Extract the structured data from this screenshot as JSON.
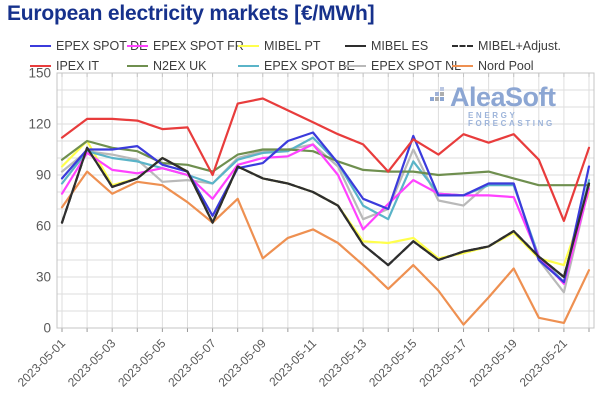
{
  "title": "European electricity markets [€/MWh]",
  "watermark": {
    "brand": "AleaSoft",
    "tagline": "ENERGY FORECASTING"
  },
  "colors": {
    "title": "#16318c",
    "grid": "#dedede",
    "axis_border": "#c4c4c4",
    "tick_label": "#595959",
    "watermark_blue": "#8ca6d3"
  },
  "legend": {
    "rows": [
      [
        {
          "label": "EPEX SPOT DE",
          "color": "#3b3bdc",
          "dashed": false
        },
        {
          "label": "EPEX SPOT FR",
          "color": "#ff42ff",
          "dashed": false
        },
        {
          "label": "MIBEL PT",
          "color": "#ffff4d",
          "dashed": false
        },
        {
          "label": "MIBEL ES",
          "color": "#2e2e2e",
          "dashed": false
        },
        {
          "label": "MIBEL+Adjust.",
          "color": "#2e2e2e",
          "dashed": true
        }
      ],
      [
        {
          "label": "IPEX IT",
          "color": "#e83c3c",
          "dashed": false
        },
        {
          "label": "N2EX UK",
          "color": "#6f8f4f",
          "dashed": false
        },
        {
          "label": "EPEX SPOT BE",
          "color": "#5ab4c8",
          "dashed": false
        },
        {
          "label": "EPEX SPOT NL",
          "color": "#b9b9b9",
          "dashed": false
        },
        {
          "label": "Nord Pool",
          "color": "#ee9051",
          "dashed": false
        }
      ]
    ]
  },
  "chart_data": {
    "type": "line",
    "title": "European electricity markets [€/MWh]",
    "xlabel": "",
    "ylabel": "",
    "ylim": [
      0,
      150
    ],
    "ytick_step": 30,
    "y_grid_step": 10,
    "grid": true,
    "legend_position": "top",
    "x": [
      "2023-05-01",
      "2023-05-02",
      "2023-05-03",
      "2023-05-04",
      "2023-05-05",
      "2023-05-06",
      "2023-05-07",
      "2023-05-08",
      "2023-05-09",
      "2023-05-10",
      "2023-05-11",
      "2023-05-12",
      "2023-05-13",
      "2023-05-14",
      "2023-05-15",
      "2023-05-16",
      "2023-05-17",
      "2023-05-18",
      "2023-05-19",
      "2023-05-20",
      "2023-05-21",
      "2023-05-22"
    ],
    "x_tick_every": 2,
    "series": [
      {
        "name": "Nord Pool",
        "color": "#ee9051",
        "dashed": false,
        "values": [
          71,
          92,
          79,
          86,
          84,
          74,
          62,
          76,
          41,
          53,
          58,
          50,
          37,
          23,
          37,
          22,
          2,
          18,
          35,
          6,
          3,
          34
        ]
      },
      {
        "name": "MIBEL PT",
        "color": "#ffff4d",
        "dashed": false,
        "values": [
          95,
          110,
          84,
          88,
          100,
          92,
          62,
          95,
          88,
          85,
          80,
          72,
          51,
          50,
          53,
          41,
          44,
          48,
          56,
          41,
          37,
          80
        ]
      },
      {
        "name": "MIBEL+Adjust.",
        "color": "#2e2e2e",
        "dashed": true,
        "values": [
          62,
          106,
          83,
          88,
          100,
          92,
          62,
          95,
          88,
          85,
          80,
          72,
          49,
          37,
          51,
          40,
          45,
          48,
          57,
          42,
          30,
          85
        ]
      },
      {
        "name": "EPEX SPOT NL",
        "color": "#b9b9b9",
        "dashed": false,
        "values": [
          92,
          104,
          102,
          99,
          86,
          87,
          85,
          100,
          104,
          105,
          108,
          95,
          64,
          70,
          105,
          75,
          72,
          85,
          85,
          40,
          21,
          83
        ]
      },
      {
        "name": "EPEX SPOT BE",
        "color": "#5ab4c8",
        "dashed": false,
        "values": [
          85,
          104,
          100,
          98,
          94,
          90,
          85,
          99,
          103,
          104,
          112,
          97,
          72,
          64,
          98,
          79,
          78,
          84,
          84,
          42,
          27,
          87
        ]
      },
      {
        "name": "N2EX UK",
        "color": "#6f8f4f",
        "dashed": false,
        "values": [
          99,
          110,
          106,
          104,
          97,
          96,
          92,
          102,
          105,
          105,
          104,
          98,
          93,
          92,
          92,
          90,
          91,
          92,
          88,
          84,
          84,
          84
        ]
      },
      {
        "name": "EPEX SPOT FR",
        "color": "#ff42ff",
        "dashed": false,
        "values": [
          79,
          103,
          93,
          91,
          94,
          90,
          76,
          96,
          100,
          101,
          108,
          90,
          58,
          73,
          87,
          79,
          78,
          78,
          77,
          42,
          26,
          82
        ]
      },
      {
        "name": "EPEX SPOT DE",
        "color": "#3b3bdc",
        "dashed": false,
        "values": [
          88,
          105,
          105,
          107,
          96,
          92,
          66,
          94,
          97,
          110,
          115,
          97,
          76,
          70,
          113,
          78,
          78,
          85,
          85,
          40,
          27,
          95
        ]
      },
      {
        "name": "MIBEL ES",
        "color": "#2e2e2e",
        "dashed": false,
        "values": [
          62,
          106,
          83,
          88,
          100,
          92,
          62,
          95,
          88,
          85,
          80,
          72,
          49,
          37,
          51,
          40,
          45,
          48,
          57,
          42,
          30,
          85
        ]
      },
      {
        "name": "IPEX IT",
        "color": "#e83c3c",
        "dashed": false,
        "values": [
          112,
          123,
          123,
          122,
          117,
          118,
          90,
          132,
          135,
          128,
          121,
          114,
          108,
          92,
          111,
          102,
          114,
          109,
          114,
          99,
          63,
          106
        ]
      }
    ]
  }
}
